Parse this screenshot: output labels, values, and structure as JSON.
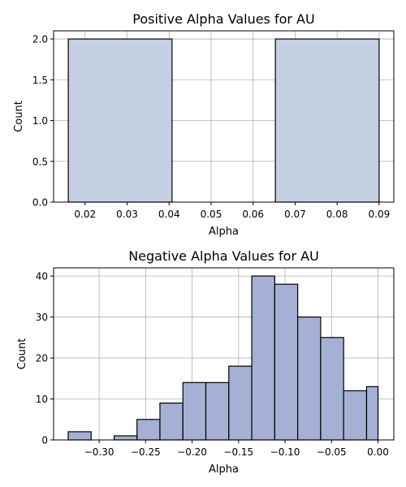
{
  "chart_data": [
    {
      "type": "bar",
      "title": "Positive Alpha Values for AU",
      "xlabel": "Alpha",
      "ylabel": "Count",
      "xlim": [
        0.0125,
        0.0935
      ],
      "ylim": [
        0,
        2.1
      ],
      "xticks": [
        0.02,
        0.03,
        0.04,
        0.05,
        0.06,
        0.07,
        0.08,
        0.09
      ],
      "xtick_labels": [
        "0.02",
        "0.03",
        "0.04",
        "0.05",
        "0.06",
        "0.07",
        "0.08",
        "0.09"
      ],
      "yticks": [
        0,
        0.5,
        1,
        1.5,
        2
      ],
      "ytick_labels": [
        "0.0",
        "0.5",
        "1.0",
        "1.5",
        "2.0"
      ],
      "grid": true,
      "bar_color": "#c4cfe2",
      "bins": [
        {
          "x0": 0.016,
          "x1": 0.0407,
          "count": 2
        },
        {
          "x0": 0.0407,
          "x1": 0.0653,
          "count": 0
        },
        {
          "x0": 0.0653,
          "x1": 0.09,
          "count": 2
        }
      ]
    },
    {
      "type": "bar",
      "title": "Negative Alpha Values for AU",
      "xlabel": "Alpha",
      "ylabel": "Count",
      "xlim": [
        -0.349,
        0.017
      ],
      "ylim": [
        0,
        42
      ],
      "xticks": [
        -0.3,
        -0.25,
        -0.2,
        -0.15,
        -0.1,
        -0.05,
        0.0
      ],
      "xtick_labels": [
        "−0.30",
        "−0.25",
        "−0.20",
        "−0.15",
        "−0.10",
        "−0.05",
        "0.00"
      ],
      "yticks": [
        0,
        10,
        20,
        30,
        40
      ],
      "ytick_labels": [
        "0",
        "10",
        "20",
        "30",
        "40"
      ],
      "grid": true,
      "bar_color": "#a4b0d4",
      "bins": [
        {
          "x0": -0.3333,
          "x1": -0.3086,
          "count": 2
        },
        {
          "x0": -0.3086,
          "x1": -0.2839,
          "count": 0
        },
        {
          "x0": -0.2839,
          "x1": -0.2593,
          "count": 1
        },
        {
          "x0": -0.2593,
          "x1": -0.2346,
          "count": 5
        },
        {
          "x0": -0.2346,
          "x1": -0.2099,
          "count": 9
        },
        {
          "x0": -0.2099,
          "x1": -0.1852,
          "count": 14
        },
        {
          "x0": -0.1852,
          "x1": -0.1605,
          "count": 14
        },
        {
          "x0": -0.1605,
          "x1": -0.1358,
          "count": 18
        },
        {
          "x0": -0.1358,
          "x1": -0.1111,
          "count": 40
        },
        {
          "x0": -0.1111,
          "x1": -0.0864,
          "count": 38
        },
        {
          "x0": -0.0864,
          "x1": -0.0617,
          "count": 30
        },
        {
          "x0": -0.0617,
          "x1": -0.037,
          "count": 25
        },
        {
          "x0": -0.037,
          "x1": -0.0123,
          "count": 12
        },
        {
          "x0": -0.0123,
          "x1": 0.0,
          "count": 13
        }
      ]
    }
  ]
}
